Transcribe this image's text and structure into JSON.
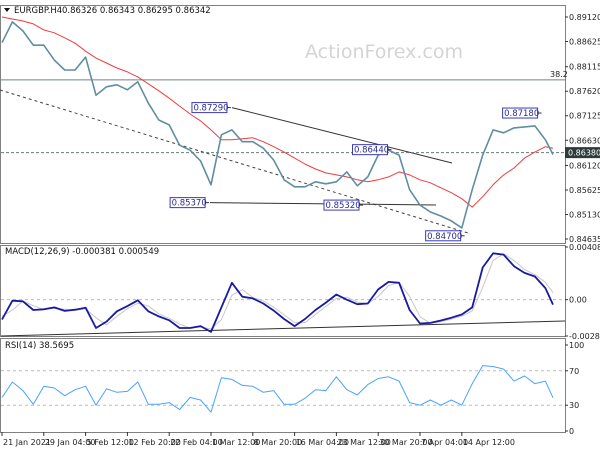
{
  "header": {
    "symbol": "EURGBP.H4",
    "ohlc": "0.86326 0.86343 0.86295 0.86342",
    "menu_icon": "triangle-down-icon"
  },
  "watermark": "ActionForex.com",
  "colors": {
    "price": "#5f8ea3",
    "ma": "#f03c3c",
    "macd": "#1a1aa0",
    "signal": "#c8c8c8",
    "rsi": "#4aa3ff",
    "annotation_border": "#3c3cb4",
    "current_price_bg": "#2e3b3b",
    "fib_line": "#6f8585"
  },
  "x_axis": {
    "ticks": [
      "21 Jan 2021",
      "29 Jan 04:00",
      "5 Feb 12:00",
      "12 Feb 20:00",
      "22 Feb 04:00",
      "1 Mar 12:00",
      "8 Mar 20:00",
      "16 Mar 04:00",
      "23 Mar 12:00",
      "30 Mar 20:00",
      "7 Apr 04:00",
      "14 Apr 12:00"
    ]
  },
  "chart_data": [
    {
      "type": "line",
      "panel": "price",
      "yticks": [
        "0.89120",
        "0.88625",
        "0.88115",
        "0.87620",
        "0.87125",
        "0.86630",
        "0.86120",
        "0.85625",
        "0.85130",
        "0.84635"
      ],
      "ylim": [
        0.84635,
        0.8912
      ],
      "grid": false,
      "current_price": {
        "label": "0.86380",
        "value": 0.8638
      },
      "fib_level": {
        "label": "38.2",
        "value": 0.8785
      },
      "annotations": [
        {
          "label": "0.87290",
          "value": 0.8729,
          "x": "2021-03-05 00:00"
        },
        {
          "label": "0.85370",
          "value": 0.8537,
          "x": "2021-03-01 04:00"
        },
        {
          "label": "0.85320",
          "value": 0.8532,
          "x": "2021-03-28 04:00"
        },
        {
          "label": "0.86440",
          "value": 0.8644,
          "x": "2021-04-02 04:00"
        },
        {
          "label": "0.84700",
          "value": 0.847,
          "x": "2021-04-15 00:00"
        },
        {
          "label": "0.87180",
          "value": 0.8718,
          "x": "2021-04-28 12:00"
        }
      ],
      "x": [
        "2021-01-21 00:00",
        "2021-01-23 01:00",
        "2021-01-25 02:00",
        "2021-01-27 03:00",
        "2021-01-29 04:00",
        "2021-01-31 00:00",
        "2021-02-01 20:00",
        "2021-02-03 16:00",
        "2021-02-05 12:00",
        "2021-02-07 08:00",
        "2021-02-09 04:00",
        "2021-02-11 00:00",
        "2021-02-12 20:00",
        "2021-02-15 04:00",
        "2021-02-17 12:00",
        "2021-02-19 20:00",
        "2021-02-22 04:00",
        "2021-02-24 00:00",
        "2021-02-25 20:00",
        "2021-02-27 16:00",
        "2021-03-01 12:00",
        "2021-03-03 08:00",
        "2021-03-05 04:00",
        "2021-03-07 00:00",
        "2021-03-08 20:00",
        "2021-03-10 16:00",
        "2021-03-12 12:00",
        "2021-03-14 08:00",
        "2021-03-16 04:00",
        "2021-03-18 00:00",
        "2021-03-19 20:00",
        "2021-03-21 16:00",
        "2021-03-23 12:00",
        "2021-03-25 08:00",
        "2021-03-27 04:00",
        "2021-03-29 00:00",
        "2021-03-30 20:00",
        "2021-04-01 16:00",
        "2021-04-03 12:00",
        "2021-04-05 08:00",
        "2021-04-07 04:00",
        "2021-04-09 00:00",
        "2021-04-10 20:00",
        "2021-04-12 16:00",
        "2021-04-14 12:00",
        "2021-04-16 08:00",
        "2021-04-18 04:00",
        "2021-04-20 00:00",
        "2021-04-21 20:00",
        "2021-04-23 16:00",
        "2021-04-25 12:00",
        "2021-04-27 08:00",
        "2021-04-29 04:00",
        "2021-04-30 12:00"
      ],
      "series": [
        {
          "key": "price",
          "values": [
            0.886,
            0.8902,
            0.8884,
            0.8855,
            0.8855,
            0.8825,
            0.8805,
            0.8805,
            0.8831,
            0.8754,
            0.8771,
            0.8775,
            0.8765,
            0.8781,
            0.8738,
            0.8704,
            0.8694,
            0.8653,
            0.8643,
            0.8621,
            0.8573,
            0.8674,
            0.8684,
            0.866,
            0.866,
            0.8647,
            0.8623,
            0.8583,
            0.8569,
            0.8569,
            0.8579,
            0.8575,
            0.8579,
            0.8599,
            0.8571,
            0.8589,
            0.8633,
            0.8643,
            0.8633,
            0.8563,
            0.8532,
            0.8518,
            0.851,
            0.85,
            0.8486,
            0.8563,
            0.8633,
            0.8684,
            0.8678,
            0.8688,
            0.869,
            0.8692,
            0.8664,
            0.86342
          ]
        },
        {
          "key": "ma",
          "values": [
            0.8912,
            0.8908,
            0.8904,
            0.8898,
            0.8886,
            0.888,
            0.887,
            0.8859,
            0.8843,
            0.8829,
            0.8819,
            0.8809,
            0.8801,
            0.8791,
            0.8777,
            0.8763,
            0.8748,
            0.8732,
            0.8716,
            0.8702,
            0.8684,
            0.8664,
            0.8664,
            0.8666,
            0.8668,
            0.866,
            0.865,
            0.8639,
            0.8627,
            0.8615,
            0.8605,
            0.8597,
            0.8593,
            0.8589,
            0.8583,
            0.8579,
            0.8583,
            0.8589,
            0.8599,
            0.8593,
            0.8583,
            0.8577,
            0.8567,
            0.8557,
            0.8545,
            0.8528,
            0.8549,
            0.8573,
            0.8593,
            0.8607,
            0.8627,
            0.8639,
            0.865,
            0.8647
          ]
        }
      ]
    },
    {
      "type": "line",
      "panel": "macd",
      "title": "MACD(12,26,9) -0.000381 0.000549",
      "yticks": [
        "0.004088",
        "0.00",
        "-0.00282"
      ],
      "ylim": [
        -0.00282,
        0.004088
      ],
      "series": [
        {
          "key": "macd",
          "values": [
            -0.00154,
            -8e-05,
            -0.00013,
            -0.0008,
            -0.00075,
            -0.0006,
            -0.00087,
            -0.00078,
            -0.00062,
            -0.0022,
            -0.0017,
            -0.0009,
            -0.0005,
            -5e-05,
            -0.0009,
            -0.0013,
            -0.0016,
            -0.0022,
            -0.0022,
            -0.00205,
            -0.0025,
            -0.0006,
            0.00131,
            0.00023,
            0.0001,
            -0.0003,
            -0.00085,
            -0.0015,
            -0.00205,
            -0.0015,
            -0.0008,
            -0.00023,
            0.0004,
            0.0,
            -0.00035,
            -0.0003,
            0.0008,
            0.00138,
            0.00131,
            -0.0008,
            -0.00185,
            -0.0018,
            -0.00162,
            -0.0014,
            -0.00115,
            -0.0006,
            0.0025,
            0.0036,
            0.0035,
            0.0026,
            0.00208,
            0.0018,
            0.0009,
            -0.000381
          ]
        },
        {
          "key": "signal",
          "values": [
            -0.0013,
            -0.00081,
            -0.0001,
            -0.00047,
            -0.00078,
            -0.00068,
            -0.00074,
            -0.00083,
            -0.0007,
            -0.00141,
            -0.00195,
            -0.0013,
            -0.0007,
            -0.00028,
            -0.00048,
            -0.0011,
            -0.00145,
            -0.0019,
            -0.0022,
            -0.00212,
            -0.00228,
            -0.00155,
            0.00035,
            0.00077,
            0.00017,
            -0.0001,
            -0.00058,
            -0.00118,
            -0.00178,
            -0.00178,
            -0.00115,
            -0.00052,
            8e-05,
            0.0002,
            -0.00018,
            -0.00033,
            0.00025,
            0.00109,
            0.00135,
            0.00026,
            -0.00133,
            -0.00183,
            -0.00171,
            -0.00151,
            -0.00128,
            -0.00088,
            0.00095,
            0.00305,
            0.00355,
            0.00305,
            0.00234,
            0.00194,
            0.00135,
            0.000549
          ]
        }
      ]
    },
    {
      "type": "line",
      "panel": "rsi",
      "title": "RSI(14) 38.5695",
      "yticks": [
        "100",
        "70",
        "30",
        "0"
      ],
      "ylim": [
        0,
        100
      ],
      "levels": [
        70,
        30
      ],
      "series": [
        {
          "key": "rsi",
          "values": [
            39,
            57,
            47,
            31,
            52,
            50,
            41,
            48,
            52,
            30,
            49,
            45,
            46,
            57,
            31,
            31,
            33,
            25,
            39,
            36,
            22,
            62,
            60,
            53,
            52,
            45,
            47,
            31,
            31,
            38,
            48,
            47,
            63,
            48,
            42,
            54,
            61,
            63,
            58,
            33,
            30,
            36,
            30,
            36,
            30,
            55,
            76,
            75,
            72,
            58,
            64,
            55,
            58,
            38.5695
          ]
        }
      ]
    }
  ]
}
